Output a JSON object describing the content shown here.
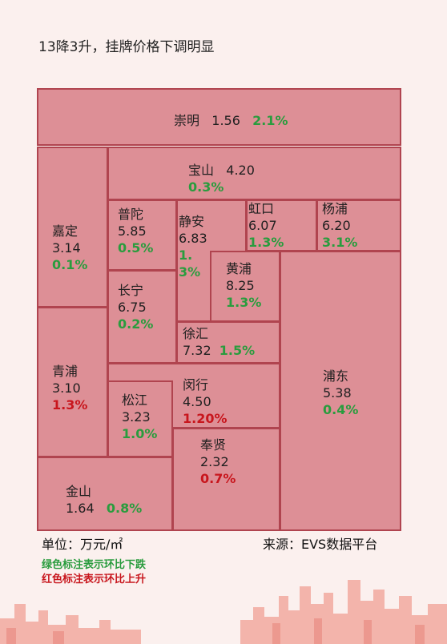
{
  "title": "13降3升，挂牌价格下调明显",
  "regions": {
    "chongming": {
      "name": "崇明",
      "value": "1.56",
      "change": "2.1%",
      "direction": "down"
    },
    "baoshan": {
      "name": "宝山",
      "value": "4.20",
      "change": "0.3%",
      "direction": "down"
    },
    "jiading": {
      "name": "嘉定",
      "value": "3.14",
      "change": "0.1%",
      "direction": "down"
    },
    "putuo": {
      "name": "普陀",
      "value": "5.85",
      "change": "0.5%",
      "direction": "down"
    },
    "jingan": {
      "name": "静安",
      "value": "6.83",
      "change": "1.3%",
      "direction": "down"
    },
    "hongkou": {
      "name": "虹口",
      "value": "6.07",
      "change": "1.3%",
      "direction": "down"
    },
    "yangpu": {
      "name": "杨浦",
      "value": "6.20",
      "change": "3.1%",
      "direction": "down"
    },
    "huangpu": {
      "name": "黄浦",
      "value": "8.25",
      "change": "1.3%",
      "direction": "down"
    },
    "changning": {
      "name": "长宁",
      "value": "6.75",
      "change": "0.2%",
      "direction": "down"
    },
    "xuhui": {
      "name": "徐汇",
      "value": "7.32",
      "change": "1.5%",
      "direction": "down"
    },
    "qingpu": {
      "name": "青浦",
      "value": "3.10",
      "change": "1.3%",
      "direction": "up"
    },
    "minhang": {
      "name": "闵行",
      "value": "4.50",
      "change": "1.20%",
      "direction": "up"
    },
    "songjiang": {
      "name": "松江",
      "value": "3.23",
      "change": "1.0%",
      "direction": "down"
    },
    "pudong": {
      "name": "浦东",
      "value": "5.38",
      "change": "0.4%",
      "direction": "down"
    },
    "fengxian": {
      "name": "奉贤",
      "value": "2.32",
      "change": "0.7%",
      "direction": "up"
    },
    "jinshan": {
      "name": "金山",
      "value": "1.64",
      "change": "0.8%",
      "direction": "down"
    }
  },
  "footer": {
    "unit": "单位：万元/㎡",
    "source": "来源：EVS数据平台",
    "legend_green": "绿色标注表示环比下跌",
    "legend_red": "红色标注表示环比上升"
  },
  "colors": {
    "background": "#fbf0ee",
    "region_fill": "#dd8f96",
    "region_border": "#b0444f",
    "decrease": "#2a9c3e",
    "increase": "#c8161d"
  }
}
